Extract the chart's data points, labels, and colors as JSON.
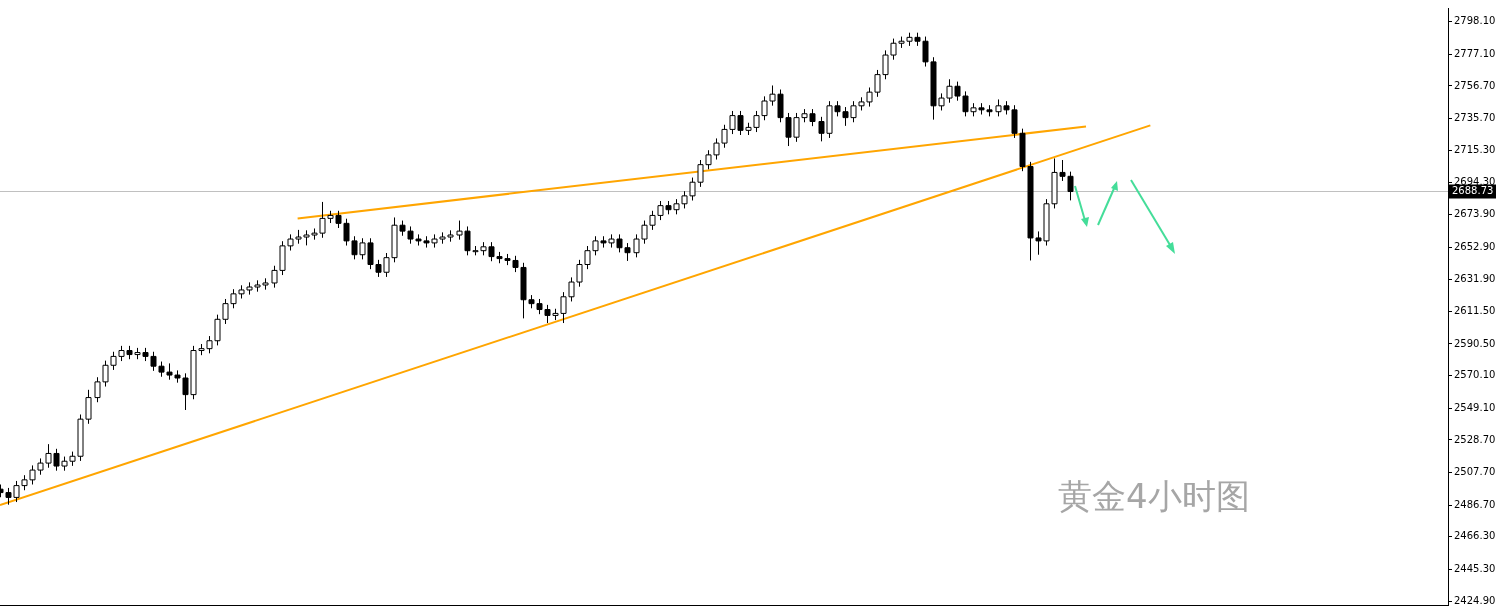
{
  "chart_data": {
    "type": "candlestick",
    "categories": [
      null,
      null,
      null,
      null,
      null,
      null,
      null,
      null,
      null,
      null,
      null,
      null,
      null,
      null,
      null,
      null,
      null,
      null,
      null,
      null,
      null,
      null,
      null,
      null,
      null,
      null,
      null,
      null,
      null,
      null,
      null,
      null,
      null,
      null,
      null,
      null,
      null,
      null,
      null,
      null,
      null,
      null,
      null,
      null,
      null,
      null,
      null,
      null,
      null,
      null,
      null,
      null,
      null,
      null,
      null,
      null,
      null,
      null,
      null,
      null,
      null,
      null,
      null,
      null,
      null,
      null,
      null,
      null,
      null,
      null,
      null,
      null,
      null,
      null,
      null,
      null,
      null,
      null,
      null,
      null,
      null,
      null,
      null,
      null,
      null,
      null,
      null,
      null,
      null,
      null,
      null,
      null,
      null,
      null,
      null,
      null,
      null,
      null,
      null,
      null,
      null,
      null,
      null,
      null,
      null,
      null,
      null,
      null,
      null,
      null,
      null,
      null,
      null,
      null,
      null,
      null,
      null,
      null,
      null,
      null,
      null,
      null,
      null,
      null,
      null,
      null,
      null,
      null,
      null,
      null,
      null,
      null,
      null,
      null,
      null,
      null,
      null,
      null,
      null,
      null,
      null,
      null,
      null,
      null,
      null,
      null,
      null,
      null,
      null,
      null,
      null,
      null,
      null,
      null,
      null,
      null,
      null,
      null,
      null,
      null,
      null,
      null,
      null,
      null,
      null,
      null,
      null,
      null,
      null,
      null,
      null,
      null,
      null,
      null,
      null,
      null,
      null,
      null,
      null,
      null,
      null
    ],
    "color": "#000000",
    "colors": [
      "#000000",
      "#000000",
      "#ffffff",
      "#ffffff",
      "#ffffff",
      "#ffffff",
      "#ffffff",
      "#000000",
      "#ffffff",
      "#ffffff",
      "#ffffff",
      "#ffffff",
      "#ffffff",
      "#ffffff",
      "#ffffff",
      "#ffffff",
      "#000000",
      "#ffffff",
      "#000000",
      "#000000",
      "#000000",
      "#000000",
      "#000000",
      "#000000",
      "#ffffff",
      "#ffffff",
      "#ffffff",
      "#ffffff",
      "#ffffff",
      "#ffffff",
      "#ffffff",
      "#ffffff",
      "#ffffff",
      "#ffffff",
      "#ffffff",
      "#ffffff",
      "#ffffff",
      "#ffffff",
      "#ffffff",
      "#ffffff",
      "#ffffff",
      "#ffffff",
      "#000000",
      "#000000",
      "#000000",
      "#ffffff",
      "#000000",
      "#000000",
      "#ffffff",
      "#ffffff",
      "#000000",
      "#000000",
      "#000000",
      "#000000",
      "#ffffff",
      "#ffffff",
      "#ffffff",
      "#ffffff",
      "#000000",
      "#ffffff",
      "#ffffff",
      "#000000",
      "#000000",
      "#000000",
      "#000000",
      "#000000",
      "#000000",
      "#000000",
      "#000000",
      "#ffffff",
      "#ffffff",
      "#ffffff",
      "#ffffff",
      "#ffffff",
      "#ffffff",
      "#000000",
      "#ffffff",
      "#000000",
      "#000000",
      "#ffffff",
      "#ffffff",
      "#ffffff",
      "#ffffff",
      "#000000",
      "#ffffff",
      "#ffffff",
      "#ffffff",
      "#ffffff",
      "#ffffff",
      "#ffffff",
      "#ffffff",
      "#ffffff",
      "#000000",
      "#ffffff",
      "#ffffff",
      "#ffffff",
      "#ffffff",
      "#000000",
      "#000000",
      "#ffffff",
      "#ffffff",
      "#000000",
      "#000000",
      "#ffffff",
      "#000000",
      "#000000",
      "#ffffff",
      "#ffffff",
      "#ffffff",
      "#ffffff",
      "#ffffff",
      "#ffffff",
      "#ffffff",
      "#ffffff",
      "#000000",
      "#000000",
      "#000000",
      "#ffffff",
      "#ffffff",
      "#000000",
      "#000000",
      "#ffffff",
      "#000000",
      "#000000",
      "#ffffff",
      "#000000",
      "#000000",
      "#000000",
      "#000000",
      "#000000",
      "#ffffff",
      "#ffffff",
      "#000000",
      "#000000",
      null,
      null,
      null,
      null,
      null,
      null,
      null,
      null,
      null,
      null,
      null,
      null,
      null,
      null,
      null,
      null,
      null,
      null,
      null,
      null,
      null,
      null,
      null,
      null,
      null,
      null,
      null,
      null,
      null,
      null,
      null,
      null,
      null,
      null,
      null,
      null,
      null,
      null,
      null,
      null,
      null,
      null,
      null,
      null,
      null,
      null,
      null
    ],
    "ohlc": [
      [
        2497,
        2500,
        2491.8,
        2494.8
      ],
      [
        2494.8,
        2497.8,
        2487,
        2491.7
      ],
      [
        2491.7,
        2502.3,
        2488.7,
        2499.3
      ],
      [
        2499.3,
        2506,
        2496.3,
        2503
      ],
      [
        2503,
        2512.3,
        2500,
        2509.3
      ],
      [
        2509.3,
        2516.8,
        2506.3,
        2513.8
      ],
      [
        2513.8,
        2526,
        2510.8,
        2520
      ],
      [
        2520,
        2523,
        2508.9,
        2511.9
      ],
      [
        2511.9,
        2518,
        2508.9,
        2515
      ],
      [
        2515,
        2521.2,
        2512,
        2518.2
      ],
      [
        2518.2,
        2545.1,
        2515.2,
        2542.1
      ],
      [
        2542.1,
        2561,
        2539.1,
        2556
      ],
      [
        2556,
        2569.1,
        2553,
        2566.1
      ],
      [
        2566.1,
        2579.8,
        2563.1,
        2576.8
      ],
      [
        2576.8,
        2585.5,
        2573.8,
        2582.5
      ],
      [
        2582.5,
        2589.3,
        2579.5,
        2586.3
      ],
      [
        2586.3,
        2589.3,
        2580.7,
        2583.7
      ],
      [
        2583.7,
        2588,
        2580.7,
        2585
      ],
      [
        2585,
        2588,
        2579.5,
        2582.5
      ],
      [
        2582.5,
        2585.5,
        2573.2,
        2576.2
      ],
      [
        2576.2,
        2579.2,
        2569.4,
        2572.4
      ],
      [
        2572.4,
        2578,
        2567.5,
        2570.5
      ],
      [
        2570.5,
        2573.5,
        2565.6,
        2568.6
      ],
      [
        2568.6,
        2571.6,
        2548,
        2557.9
      ],
      [
        2557.9,
        2589.3,
        2554.9,
        2586.3
      ],
      [
        2586.3,
        2590.5,
        2583.3,
        2587.5
      ],
      [
        2587.5,
        2595.6,
        2584.5,
        2592.6
      ],
      [
        2592.6,
        2609.4,
        2589.6,
        2606.4
      ],
      [
        2606.4,
        2619.5,
        2603.4,
        2616.5
      ],
      [
        2616.5,
        2625.8,
        2613.5,
        2622.8
      ],
      [
        2622.8,
        2628.3,
        2619.8,
        2625.3
      ],
      [
        2625.3,
        2630.2,
        2622.3,
        2627.2
      ],
      [
        2627.2,
        2631.5,
        2624.2,
        2628.5
      ],
      [
        2628.5,
        2632.8,
        2625.5,
        2629.8
      ],
      [
        2629.8,
        2640.9,
        2626.8,
        2637.9
      ],
      [
        2637.9,
        2656.7,
        2634.9,
        2653.7
      ],
      [
        2653.7,
        2661.1,
        2650.7,
        2658.1
      ],
      [
        2658.1,
        2664,
        2655.1,
        2659.4
      ],
      [
        2659.4,
        2663.7,
        2654,
        2660.7
      ],
      [
        2660.7,
        2664.9,
        2657.7,
        2661.9
      ],
      [
        2661.9,
        2682,
        2658.9,
        2671.4
      ],
      [
        2671.4,
        2676.3,
        2668.4,
        2673.3
      ],
      [
        2673.3,
        2676.3,
        2665.2,
        2668.2
      ],
      [
        2668.2,
        2671.2,
        2653.9,
        2656.9
      ],
      [
        2656.9,
        2659.9,
        2645,
        2648
      ],
      [
        2648,
        2658.6,
        2645,
        2655.6
      ],
      [
        2655.6,
        2658.6,
        2638.7,
        2641.7
      ],
      [
        2641.7,
        2644.7,
        2633.7,
        2636.7
      ],
      [
        2636.7,
        2649.1,
        2633.7,
        2646.1
      ],
      [
        2646.1,
        2672,
        2643.1,
        2667
      ],
      [
        2667,
        2670,
        2660.2,
        2663.2
      ],
      [
        2663.2,
        2666.2,
        2655.1,
        2658.1
      ],
      [
        2658.1,
        2661.1,
        2653.9,
        2656.9
      ],
      [
        2656.9,
        2659.9,
        2652.6,
        2655.6
      ],
      [
        2655.6,
        2661.1,
        2652.6,
        2658.1
      ],
      [
        2658.1,
        2662.4,
        2655.1,
        2659.4
      ],
      [
        2659.4,
        2663.7,
        2656.4,
        2660.7
      ],
      [
        2660.7,
        2670,
        2657.7,
        2663.2
      ],
      [
        2663.2,
        2666.2,
        2647.6,
        2650.6
      ],
      [
        2650.6,
        2653.6,
        2647.6,
        2650.6
      ],
      [
        2650.6,
        2656.1,
        2647.6,
        2653.1
      ],
      [
        2653.1,
        2656.1,
        2643.8,
        2646.8
      ],
      [
        2646.8,
        2649.8,
        2642.5,
        2645.5
      ],
      [
        2645.5,
        2648.5,
        2641.3,
        2644.3
      ],
      [
        2644.3,
        2647.3,
        2636.8,
        2639.8
      ],
      [
        2639.8,
        2642.8,
        2607,
        2619
      ],
      [
        2619,
        2622,
        2613.5,
        2616.5
      ],
      [
        2616.5,
        2619.5,
        2609.7,
        2612.7
      ],
      [
        2612.7,
        2615.7,
        2604,
        2608.9
      ],
      [
        2608.9,
        2613.2,
        2605.9,
        2610.2
      ],
      [
        2610.2,
        2623.9,
        2604,
        2620.9
      ],
      [
        2620.9,
        2633.4,
        2617.9,
        2630.4
      ],
      [
        2630.4,
        2644.7,
        2627.4,
        2641.7
      ],
      [
        2641.7,
        2653.6,
        2638.7,
        2650.6
      ],
      [
        2650.6,
        2659.9,
        2647.6,
        2656.9
      ],
      [
        2656.9,
        2659.9,
        2652.6,
        2655.6
      ],
      [
        2655.6,
        2661.1,
        2652.6,
        2658.1
      ],
      [
        2658.1,
        2661.1,
        2649.5,
        2652.5
      ],
      [
        2652.5,
        2655.5,
        2644,
        2649.3
      ],
      [
        2649.3,
        2661.1,
        2646.3,
        2658.1
      ],
      [
        2658.1,
        2670,
        2655.1,
        2667
      ],
      [
        2667,
        2676.3,
        2664,
        2673.3
      ],
      [
        2673.3,
        2682.6,
        2670.3,
        2679.6
      ],
      [
        2679.6,
        2682.6,
        2674,
        2677
      ],
      [
        2677,
        2683.8,
        2674,
        2680.8
      ],
      [
        2680.8,
        2688.9,
        2677.8,
        2685.9
      ],
      [
        2685.9,
        2697.7,
        2682.9,
        2694.7
      ],
      [
        2694.7,
        2709,
        2691.7,
        2706
      ],
      [
        2706,
        2715.3,
        2703,
        2712.3
      ],
      [
        2712.3,
        2722.9,
        2709.3,
        2719.9
      ],
      [
        2719.9,
        2731.7,
        2716.9,
        2728.7
      ],
      [
        2728.7,
        2740.6,
        2725.7,
        2737.6
      ],
      [
        2737.6,
        2740.6,
        2725.1,
        2728.1
      ],
      [
        2728.1,
        2733,
        2725.1,
        2730
      ],
      [
        2730,
        2740.6,
        2727,
        2737.6
      ],
      [
        2737.6,
        2750,
        2734.6,
        2747
      ],
      [
        2747,
        2757,
        2744,
        2751.4
      ],
      [
        2751.4,
        2754.4,
        2733.3,
        2736.3
      ],
      [
        2736.3,
        2739.3,
        2718,
        2723.7
      ],
      [
        2723.7,
        2739.3,
        2720.7,
        2736.3
      ],
      [
        2736.3,
        2741.8,
        2733.3,
        2738.8
      ],
      [
        2738.8,
        2741.8,
        2730.8,
        2733.8
      ],
      [
        2733.8,
        2736.8,
        2721,
        2726.2
      ],
      [
        2726.2,
        2746.9,
        2723.2,
        2743.9
      ],
      [
        2743.9,
        2746.9,
        2737.1,
        2740.1
      ],
      [
        2740.1,
        2743.1,
        2731,
        2736.3
      ],
      [
        2736.3,
        2746.9,
        2733.3,
        2743.9
      ],
      [
        2743.9,
        2749.4,
        2740.9,
        2746.4
      ],
      [
        2746.4,
        2755.7,
        2743.4,
        2752.7
      ],
      [
        2752.7,
        2767,
        2749.7,
        2764
      ],
      [
        2764,
        2779.6,
        2761,
        2776.6
      ],
      [
        2776.6,
        2787.2,
        2773.6,
        2784.2
      ],
      [
        2784.2,
        2788.5,
        2781.2,
        2785.5
      ],
      [
        2785.5,
        2791,
        2782.5,
        2788
      ],
      [
        2788,
        2791,
        2782.5,
        2785.5
      ],
      [
        2785.5,
        2788.5,
        2769.2,
        2772.2
      ],
      [
        2772.2,
        2775.2,
        2735,
        2743.9
      ],
      [
        2743.9,
        2751.9,
        2740.9,
        2748.9
      ],
      [
        2748.9,
        2761,
        2745.9,
        2756.5
      ],
      [
        2756.5,
        2759.5,
        2747.2,
        2750.2
      ],
      [
        2750.2,
        2753.2,
        2737.1,
        2740.1
      ],
      [
        2740.1,
        2745.6,
        2737.1,
        2742.6
      ],
      [
        2742.6,
        2745.6,
        2738.3,
        2741.3
      ],
      [
        2741.3,
        2744.3,
        2737.1,
        2740.1
      ],
      [
        2740.1,
        2748,
        2737.1,
        2743.9
      ],
      [
        2743.9,
        2746.9,
        2738.3,
        2741.3
      ],
      [
        2741.3,
        2744.3,
        2723.2,
        2726.2
      ],
      [
        2726.2,
        2729.2,
        2701.8,
        2704.8
      ],
      [
        2704.8,
        2707.8,
        2644.3,
        2658.8
      ],
      [
        2658.8,
        2663,
        2648,
        2656.9
      ],
      [
        2656.9,
        2683.8,
        2653.9,
        2680.8
      ],
      [
        2680.8,
        2710,
        2677.8,
        2701
      ],
      [
        2701,
        2709,
        2695.5,
        2698.5
      ],
      [
        2698.5,
        2701.5,
        2683,
        2688.7
      ],
      null,
      null,
      null,
      null,
      null,
      null,
      null,
      null,
      null,
      null,
      null,
      null,
      null,
      null,
      null,
      null,
      null,
      null,
      null,
      null,
      null,
      null,
      null,
      null,
      null,
      null,
      null,
      null,
      null,
      null,
      null,
      null,
      null,
      null,
      null,
      null,
      null,
      null,
      null,
      null,
      null,
      null,
      null,
      null,
      null,
      null,
      null
    ],
    "series": [
      {
        "type": "line",
        "color": "#ffa500",
        "values": [
          2486.7,
          null,
          null,
          null,
          null,
          null,
          null,
          null,
          null,
          null,
          null,
          null,
          null,
          null,
          null,
          null,
          null,
          null,
          null,
          null,
          null,
          null,
          null,
          null,
          null,
          null,
          null,
          null,
          null,
          null,
          null,
          null,
          null,
          null,
          null,
          null,
          null,
          null,
          null,
          null,
          null,
          null,
          null,
          null,
          null,
          null,
          null,
          null,
          null,
          null,
          null,
          null,
          null,
          null,
          null,
          null,
          null,
          null,
          null,
          null,
          null,
          null,
          null,
          null,
          null,
          null,
          null,
          null,
          null,
          null,
          null,
          null,
          null,
          null,
          null,
          null,
          null,
          null,
          null,
          null,
          null,
          null,
          null,
          null,
          null,
          null,
          null,
          null,
          null,
          null,
          null,
          null,
          null,
          null,
          null,
          null,
          null,
          null,
          null,
          null,
          null,
          null,
          null,
          null,
          null,
          null,
          null,
          null,
          null,
          null,
          null,
          null,
          null,
          null,
          null,
          null,
          null,
          null,
          null,
          null,
          null,
          null,
          null,
          null,
          null,
          null,
          null,
          null,
          null,
          null,
          null,
          null,
          null,
          null,
          null,
          null,
          null,
          null,
          null,
          null,
          null,
          null,
          null,
          2731.3,
          null,
          null,
          null,
          null,
          null,
          null,
          null,
          null,
          null,
          null,
          null,
          null,
          null,
          null,
          null,
          null,
          null,
          null,
          null,
          null,
          null,
          null,
          null,
          null,
          null,
          null,
          null,
          null,
          null,
          null,
          null,
          null,
          null,
          null,
          null,
          null,
          null
        ]
      },
      {
        "type": "line",
        "color": "#ffa500",
        "values": [
          null,
          null,
          null,
          null,
          null,
          null,
          null,
          null,
          null,
          null,
          null,
          null,
          null,
          null,
          null,
          null,
          null,
          null,
          null,
          null,
          null,
          null,
          null,
          null,
          null,
          null,
          null,
          null,
          null,
          null,
          null,
          null,
          null,
          null,
          null,
          null,
          null,
          2671.4,
          null,
          null,
          null,
          null,
          null,
          null,
          null,
          null,
          null,
          null,
          null,
          null,
          null,
          null,
          null,
          null,
          null,
          null,
          null,
          null,
          null,
          null,
          null,
          null,
          null,
          null,
          null,
          null,
          null,
          null,
          null,
          null,
          null,
          null,
          null,
          null,
          null,
          null,
          null,
          null,
          null,
          null,
          null,
          null,
          null,
          null,
          null,
          null,
          null,
          null,
          null,
          null,
          null,
          null,
          null,
          null,
          null,
          null,
          null,
          null,
          null,
          null,
          null,
          null,
          null,
          null,
          null,
          null,
          null,
          null,
          null,
          null,
          null,
          null,
          null,
          null,
          null,
          null,
          null,
          null,
          null,
          null,
          null,
          null,
          null,
          null,
          null,
          null,
          null,
          null,
          null,
          null,
          null,
          null,
          null,
          null,
          null,
          2730.6,
          null,
          null,
          null,
          null,
          null,
          null,
          null,
          null,
          null,
          null,
          null,
          null,
          null,
          null,
          null,
          null,
          null,
          null,
          null,
          null,
          null,
          null,
          null,
          null,
          null,
          null,
          null,
          null,
          null,
          null,
          null,
          null,
          null,
          null,
          null,
          null,
          null,
          null,
          null,
          null,
          null,
          null,
          null,
          null,
          null
        ]
      }
    ],
    "ylim": [
      2422.4,
      2806.9
    ],
    "yticks": [
      {
        "value": 2798.1,
        "label": "2798.10"
      },
      {
        "value": 2777.1,
        "label": "2777.10"
      },
      {
        "value": 2756.7,
        "label": "2756.70"
      },
      {
        "value": 2735.7,
        "label": "2735.70"
      },
      {
        "value": 2715.3,
        "label": "2715.30"
      },
      {
        "value": 2694.3,
        "label": "2694.30"
      },
      {
        "value": 2673.9,
        "label": "2673.90"
      },
      {
        "value": 2652.9,
        "label": "2652.90"
      },
      {
        "value": 2631.9,
        "label": "2631.90"
      },
      {
        "value": 2611.5,
        "label": "2611.50"
      },
      {
        "value": 2590.5,
        "label": "2590.50"
      },
      {
        "value": 2570.1,
        "label": "2570.10"
      },
      {
        "value": 2549.1,
        "label": "2549.10"
      },
      {
        "value": 2528.7,
        "label": "2528.70"
      },
      {
        "value": 2507.7,
        "label": "2507.70"
      },
      {
        "value": 2486.7,
        "label": "2486.70"
      },
      {
        "value": 2466.3,
        "label": "2466.30"
      },
      {
        "value": 2445.3,
        "label": "2445.30"
      },
      {
        "value": 2424.9,
        "label": "2424.90"
      }
    ],
    "ref_lines": [
      {
        "axis": "y",
        "value": 2688.73,
        "label": "2688.73",
        "color": "#c0c0c0"
      }
    ],
    "tick_labels": "y",
    "annotations": [
      "黄金4小时图"
    ]
  }
}
